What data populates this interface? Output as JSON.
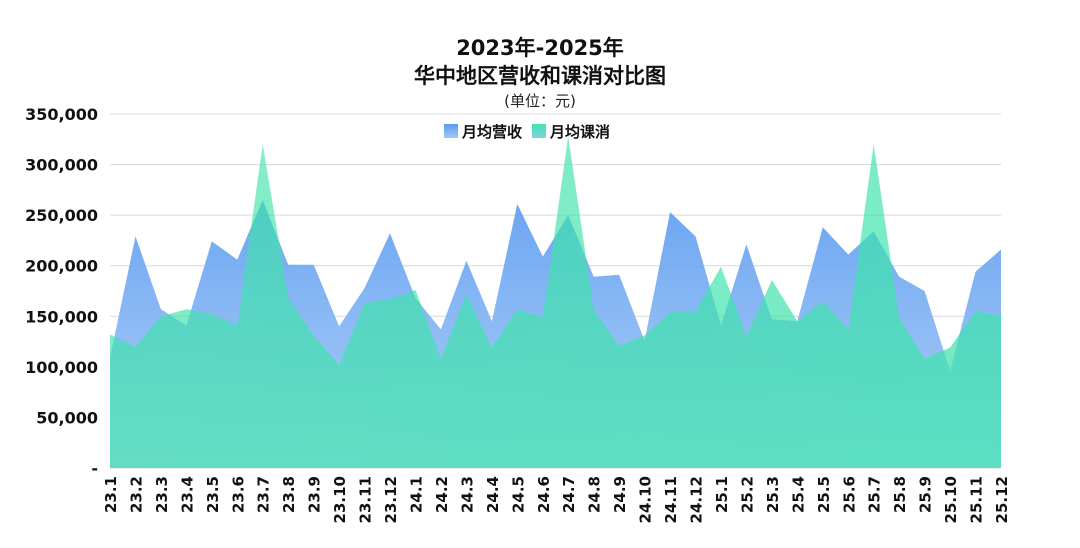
{
  "chart_data": {
    "type": "area",
    "title_line1": "2023年-2025年",
    "title_line2": "华中地区营收和课消对比图",
    "subtitle": "(单位：元)",
    "ylim": [
      0,
      350000
    ],
    "y_ticks": [
      "-",
      "50,000",
      "100,000",
      "150,000",
      "200,000",
      "250,000",
      "300,000",
      "350,000"
    ],
    "y_tick_values": [
      0,
      50000,
      100000,
      150000,
      200000,
      250000,
      300000,
      350000
    ],
    "legend_position": "top-center",
    "grid": true,
    "categories": [
      "23.1",
      "23.2",
      "23.3",
      "23.4",
      "23.5",
      "23.6",
      "23.7",
      "23.8",
      "23.9",
      "23.10",
      "23.11",
      "23.12",
      "24.1",
      "24.2",
      "24.3",
      "24.4",
      "24.5",
      "24.6",
      "24.7",
      "24.8",
      "24.9",
      "24.10",
      "24.11",
      "24.12",
      "25.1",
      "25.2",
      "25.3",
      "25.4",
      "25.5",
      "25.6",
      "25.7",
      "25.8",
      "25.9",
      "25.10",
      "25.11",
      "25.12"
    ],
    "series": [
      {
        "name": "月均营收",
        "color_top": "#5b9bf0",
        "color_bottom": "#9fc8f8",
        "values": [
          109000,
          229000,
          157000,
          141000,
          224000,
          206000,
          265000,
          201000,
          201000,
          140000,
          178000,
          232000,
          168000,
          137000,
          205000,
          145000,
          261000,
          209000,
          250000,
          189000,
          191000,
          126000,
          253000,
          229000,
          141000,
          221000,
          147000,
          145000,
          238000,
          211000,
          234000,
          189000,
          175000,
          96000,
          194000,
          216000
        ]
      },
      {
        "name": "月均课消",
        "color_top": "#44e0b0",
        "color_bottom": "#7dd6e0",
        "values": [
          132000,
          120000,
          150000,
          157000,
          152000,
          141000,
          320000,
          169000,
          131000,
          102000,
          163000,
          167000,
          176000,
          108000,
          172000,
          119000,
          157000,
          149000,
          328000,
          156000,
          121000,
          131000,
          154000,
          155000,
          199000,
          130000,
          186000,
          145000,
          165000,
          137000,
          320000,
          148000,
          108000,
          119000,
          155000,
          150000
        ]
      }
    ]
  }
}
